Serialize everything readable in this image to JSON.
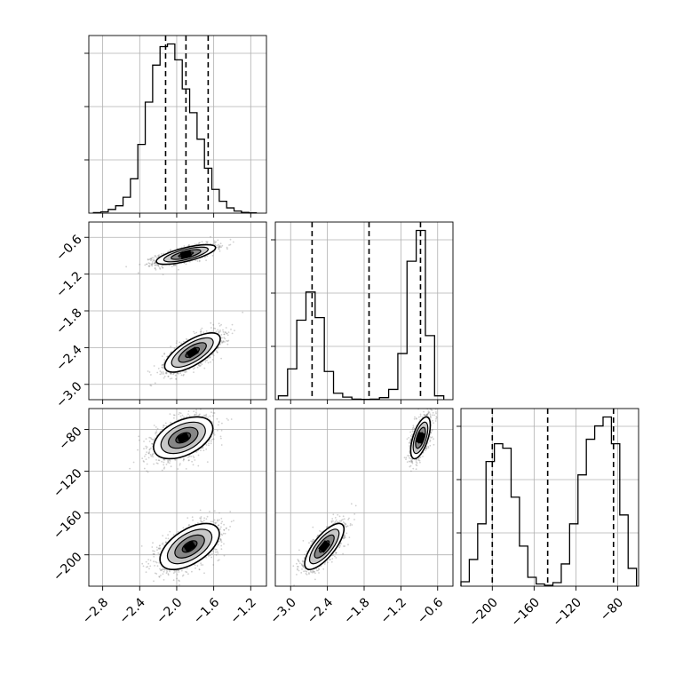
{
  "chart_data": {
    "type": "corner",
    "parameters": [
      {
        "ticks": [
          -2.8,
          -2.4,
          -2.0,
          -1.6,
          -1.2
        ],
        "tick_labels": [
          "−2.8",
          "−2.4",
          "−2.0",
          "−1.6",
          "−1.2"
        ],
        "range": [
          -2.95,
          -1.03
        ]
      },
      {
        "ticks": [
          -3.0,
          -2.4,
          -1.8,
          -1.2,
          -0.6
        ],
        "tick_labels": [
          "−3.0",
          "−2.4",
          "−1.8",
          "−1.2",
          "−0.6"
        ],
        "range": [
          -3.25,
          -0.35
        ]
      },
      {
        "ticks": [
          -200,
          -160,
          -120,
          -80
        ],
        "tick_labels": [
          "−200",
          "−160",
          "−120",
          "−80"
        ],
        "range": [
          -230,
          -60
        ]
      }
    ],
    "histograms": [
      {
        "param": 0,
        "quantiles": [
          -2.12,
          -1.9,
          -1.66
        ],
        "bin_edges": [
          -2.9,
          -2.82,
          -2.74,
          -2.66,
          -2.58,
          -2.5,
          -2.42,
          -2.34,
          -2.26,
          -2.18,
          -2.1,
          -2.02,
          -1.94,
          -1.86,
          -1.78,
          -1.7,
          -1.62,
          -1.54,
          -1.46,
          -1.38,
          -1.3,
          -1.22,
          -1.14
        ],
        "counts": [
          2,
          5,
          14,
          28,
          60,
          130,
          260,
          420,
          560,
          630,
          640,
          580,
          470,
          380,
          280,
          170,
          90,
          45,
          20,
          8,
          3,
          1
        ]
      },
      {
        "param": 1,
        "quantiles": [
          -2.65,
          -1.72,
          -0.88
        ],
        "bin_edges": [
          -3.2,
          -3.05,
          -2.9,
          -2.75,
          -2.6,
          -2.45,
          -2.3,
          -2.15,
          -2.0,
          -1.85,
          -1.7,
          -1.55,
          -1.4,
          -1.25,
          -1.1,
          -0.95,
          -0.8,
          -0.65,
          -0.5
        ],
        "counts": [
          15,
          120,
          310,
          420,
          320,
          110,
          25,
          10,
          2,
          1,
          2,
          8,
          40,
          180,
          540,
          660,
          250,
          15
        ]
      },
      {
        "param": 2,
        "quantiles": [
          -200,
          -147,
          -84
        ],
        "bin_edges": [
          -230,
          -222,
          -214,
          -206,
          -198,
          -190,
          -182,
          -174,
          -166,
          -158,
          -150,
          -142,
          -134,
          -126,
          -118,
          -110,
          -102,
          -94,
          -86,
          -78,
          -70,
          -62
        ],
        "counts": [
          10,
          60,
          140,
          280,
          320,
          310,
          200,
          90,
          20,
          5,
          2,
          8,
          50,
          140,
          250,
          330,
          360,
          380,
          320,
          160,
          40
        ]
      }
    ],
    "pairs": [
      {
        "x_param": 0,
        "y_param": 1,
        "clusters": [
          {
            "center": [
              -1.9,
              -0.88
            ],
            "sigma": [
              0.16,
              0.08
            ],
            "rho": 0.7
          },
          {
            "center": [
              -1.83,
              -2.48
            ],
            "sigma": [
              0.15,
              0.16
            ],
            "rho": 0.7
          }
        ]
      },
      {
        "x_param": 0,
        "y_param": 2,
        "clusters": [
          {
            "center": [
              -1.93,
              -88
            ],
            "sigma": [
              0.16,
              10
            ],
            "rho": 0.45
          },
          {
            "center": [
              -1.86,
              -192
            ],
            "sigma": [
              0.16,
              11
            ],
            "rho": 0.55
          }
        ]
      },
      {
        "x_param": 1,
        "y_param": 2,
        "clusters": [
          {
            "center": [
              -0.88,
              -88
            ],
            "sigma": [
              0.08,
              10
            ],
            "rho": 0.6
          },
          {
            "center": [
              -2.45,
              -192
            ],
            "sigma": [
              0.16,
              11
            ],
            "rho": 0.75
          }
        ]
      }
    ],
    "grid": true
  }
}
